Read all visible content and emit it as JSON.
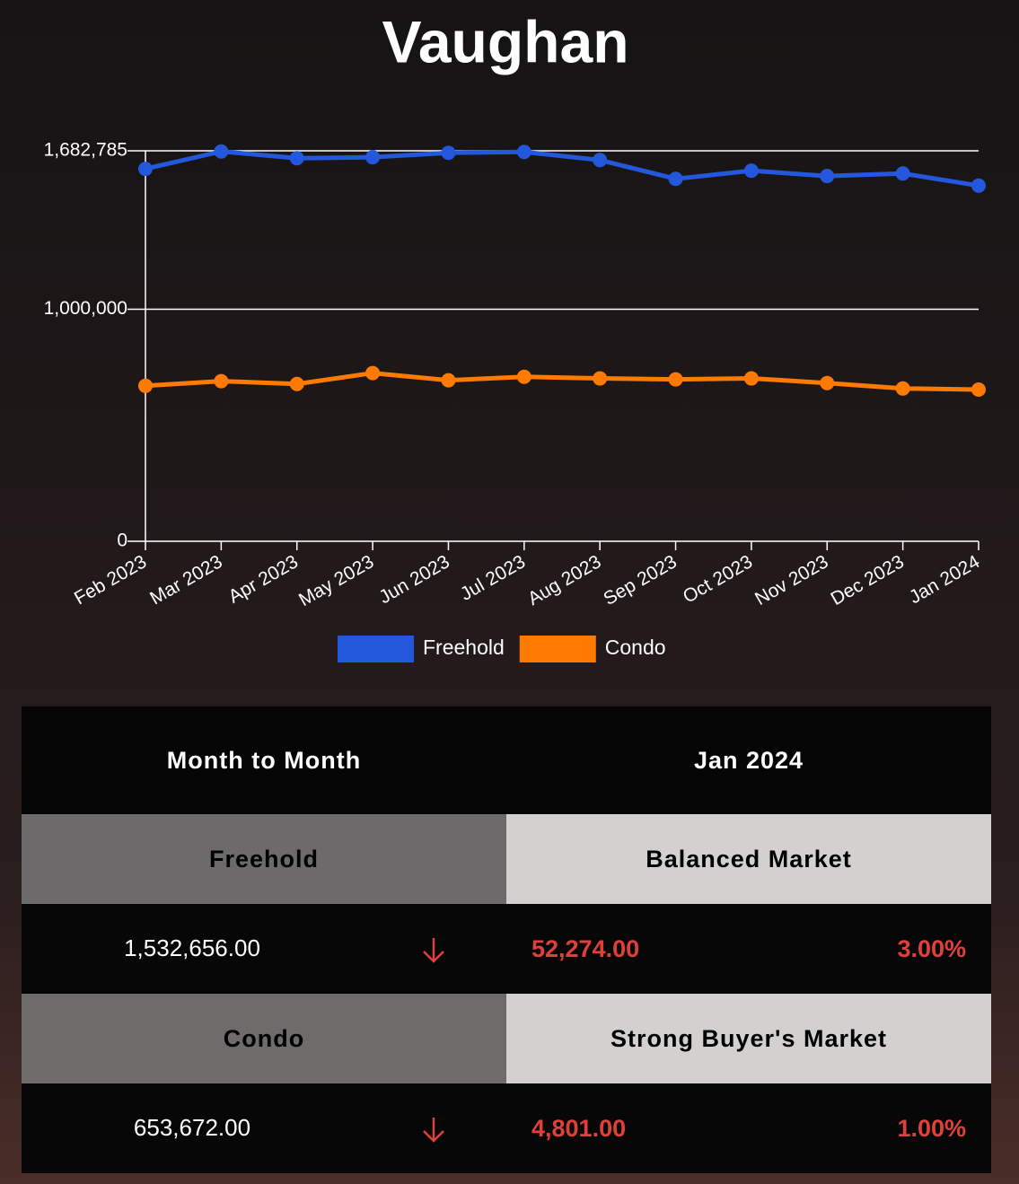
{
  "chart_data": {
    "type": "line",
    "title": "Vaughan",
    "categories": [
      "Feb 2023",
      "Mar 2023",
      "Apr 2023",
      "May 2023",
      "Jun 2023",
      "Jul 2023",
      "Aug 2023",
      "Sep 2023",
      "Oct 2023",
      "Nov 2023",
      "Dec 2023",
      "Jan 2024"
    ],
    "series": [
      {
        "name": "Freehold",
        "color": "#2458dc",
        "values": [
          1605000,
          1680000,
          1651000,
          1655000,
          1674000,
          1678000,
          1643000,
          1562000,
          1597000,
          1574000,
          1584930,
          1532656
        ]
      },
      {
        "name": "Condo",
        "color": "#ff7a00",
        "values": [
          670000,
          690000,
          678000,
          725000,
          694000,
          709000,
          702000,
          698000,
          702000,
          682000,
          658473,
          653672
        ]
      }
    ],
    "ylim": [
      0,
      1682785
    ],
    "yticks": [
      0,
      {
        "value": 1000000,
        "label": "1,000,000"
      },
      {
        "value": 1682785,
        "label": "1,682,785"
      }
    ],
    "grid": true,
    "legend": "bottom"
  },
  "table": {
    "header": [
      "Month to Month",
      "Jan 2024"
    ],
    "rows": [
      {
        "label": "Freehold",
        "market": "Balanced Market",
        "value": "1,532,656.00",
        "change": "52,274.00",
        "percent": "3.00%"
      },
      {
        "label": "Condo",
        "market": "Strong Buyer's Market",
        "value": "653,672.00",
        "change": "4,801.00",
        "percent": "1.00%"
      }
    ]
  }
}
